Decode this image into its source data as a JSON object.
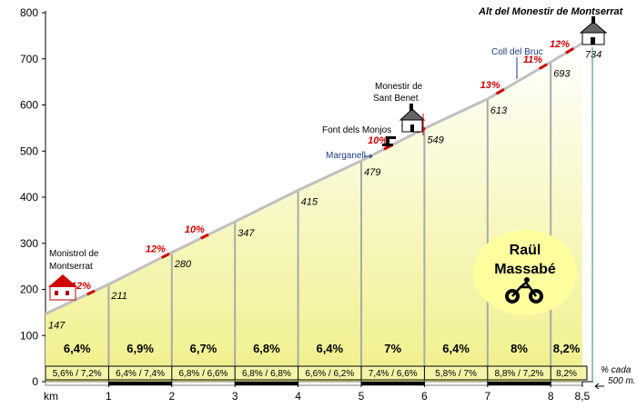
{
  "chart_data": {
    "type": "area",
    "title": "Alt del Monestir de  Montserrat",
    "x_axis_label": "km",
    "ylim": [
      0,
      800
    ],
    "xlim": [
      0,
      8.5
    ],
    "x_ticks": [
      "1",
      "2",
      "3",
      "4",
      "5",
      "6",
      "7",
      "8",
      "8,5"
    ],
    "y_ticks": [
      "0",
      "100",
      "200",
      "300",
      "400",
      "500",
      "600",
      "700",
      "800"
    ],
    "profile": [
      {
        "km": 0,
        "elev": 147
      },
      {
        "km": 1,
        "elev": 211
      },
      {
        "km": 2,
        "elev": 280
      },
      {
        "km": 3,
        "elev": 347
      },
      {
        "km": 4,
        "elev": 415
      },
      {
        "km": 5,
        "elev": 479
      },
      {
        "km": 6,
        "elev": 549
      },
      {
        "km": 7,
        "elev": 613
      },
      {
        "km": 8,
        "elev": 693
      },
      {
        "km": 8.5,
        "elev": 734
      }
    ],
    "elevation_labels": [
      "147",
      "211",
      "280",
      "347",
      "415",
      "479",
      "549",
      "613",
      "693",
      "734"
    ],
    "segment_avg_grades": [
      "6,4%",
      "6,9%",
      "6,7%",
      "6,8%",
      "6,4%",
      "7%",
      "6,4%",
      "8%",
      "8,2%"
    ],
    "half_km_grades": [
      "5,6%  /  7,2%",
      "6,4%  /  7,4%",
      "6,8%  /  6,6%",
      "6,8%  /  6,8%",
      "6,6%  /  6,2%",
      "7,4%  /  6,6%",
      "5,8%  /  7%",
      "8,8%  /  7,2%",
      "8,2%"
    ],
    "steep_sections": [
      {
        "km": 0.72,
        "label": "12%"
      },
      {
        "km": 1.9,
        "label": "12%"
      },
      {
        "km": 2.52,
        "label": "10%"
      },
      {
        "km": 5.42,
        "label": "10%"
      },
      {
        "km": 5.95,
        "label": "11%"
      },
      {
        "km": 7.2,
        "label": "13%"
      },
      {
        "km": 7.88,
        "label": "11%"
      },
      {
        "km": 8.3,
        "label": "12%"
      }
    ],
    "half_km_note": "% cada 500 m."
  },
  "landmarks": {
    "start": {
      "line1": "Monistrol de",
      "line2": "Montserrat"
    },
    "marganell": "Marganell",
    "font_monjos": "Font dels Monjos",
    "sant_benet": {
      "line1": "Monestir de",
      "line2": "Sant Benet"
    },
    "coll_bruc": "Coll del Bruc"
  },
  "author": {
    "line1": "Raül",
    "line2": "Massabé",
    "icon": "cyclist-icon"
  },
  "colors": {
    "fill_top": "#ffffff",
    "fill_bottom": "#f0f08a",
    "profile_line": "#c0c0c0",
    "grade_red": "#d40000",
    "author_bubble": "#ffffa0",
    "peak_line": "#2e8b57"
  }
}
